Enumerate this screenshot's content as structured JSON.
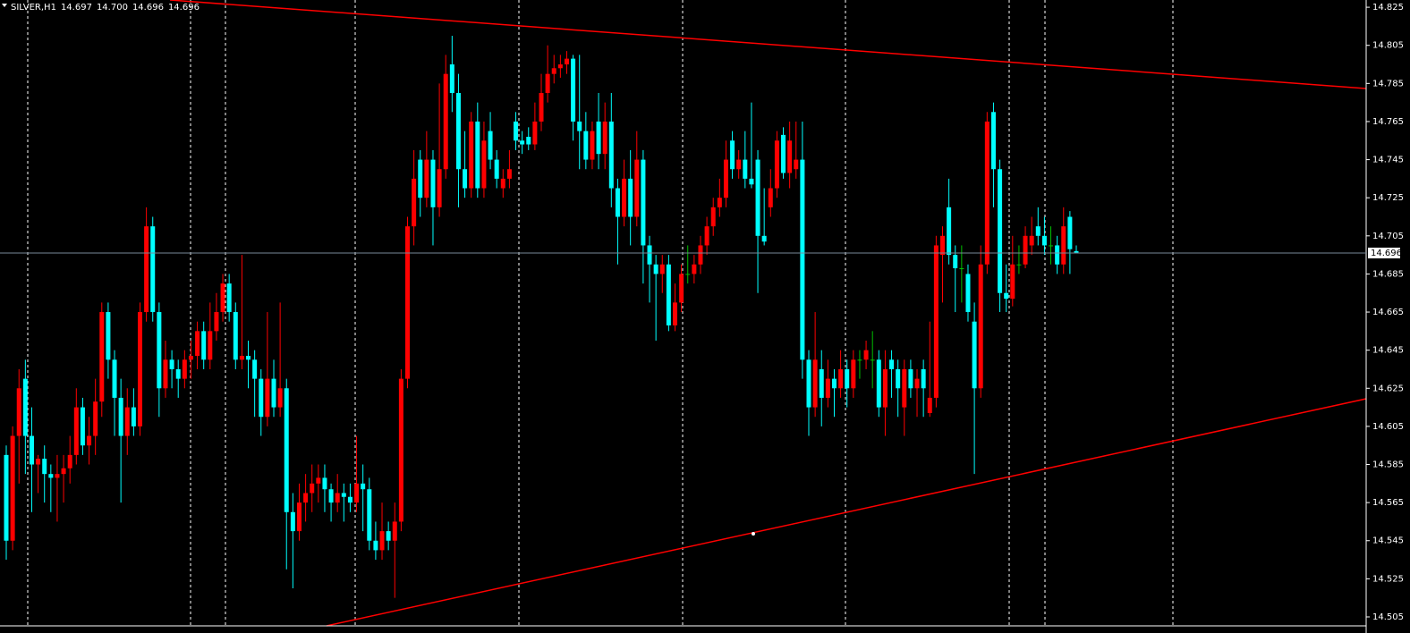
{
  "chart_data": {
    "type": "candlestick",
    "title": "SILVER,H1",
    "header": [
      14.697,
      {
        "value": 14.7,
        "label": "14.700"
      },
      14.696,
      14.696
    ],
    "current_price": 14.696,
    "ylim": [
      14.5003,
      14.8288
    ],
    "yticks": [
      14.825,
      14.805,
      14.785,
      14.765,
      14.745,
      14.725,
      14.705,
      14.685,
      14.665,
      14.645,
      14.625,
      14.605,
      14.585,
      14.565,
      14.545,
      14.525,
      14.505
    ],
    "colors": {
      "up": "#ff0000",
      "down": "#00ffff",
      "doji": "#00c000",
      "price_line": "#778899"
    },
    "ohlc": [
      [
        14.59,
        14.595,
        14.535,
        14.545
      ],
      [
        14.545,
        14.605,
        14.54,
        14.6
      ],
      [
        14.6,
        14.635,
        14.575,
        14.625
      ],
      [
        14.63,
        14.64,
        14.58,
        14.6
      ],
      [
        14.6,
        14.615,
        14.56,
        14.585
      ],
      [
        14.585,
        14.59,
        14.57,
        14.588
      ],
      [
        14.588,
        14.595,
        14.565,
        14.58
      ],
      [
        14.58,
        14.585,
        14.56,
        14.578
      ],
      [
        14.578,
        14.59,
        14.555,
        14.58
      ],
      [
        14.58,
        14.59,
        14.565,
        14.583
      ],
      [
        14.583,
        14.6,
        14.575,
        14.59
      ],
      [
        14.59,
        14.625,
        14.585,
        14.615
      ],
      [
        14.615,
        14.62,
        14.59,
        14.595
      ],
      [
        14.595,
        14.61,
        14.585,
        14.6
      ],
      [
        14.6,
        14.63,
        14.59,
        14.618
      ],
      [
        14.618,
        14.67,
        14.61,
        14.665
      ],
      [
        14.665,
        14.67,
        14.63,
        14.64
      ],
      [
        14.64,
        14.645,
        14.6,
        14.62
      ],
      [
        14.62,
        14.63,
        14.565,
        14.6
      ],
      [
        14.6,
        14.625,
        14.59,
        14.615
      ],
      [
        14.615,
        14.625,
        14.6,
        14.605
      ],
      [
        14.605,
        14.67,
        14.6,
        14.665
      ],
      [
        14.665,
        14.72,
        14.66,
        14.71
      ],
      [
        14.71,
        14.715,
        14.66,
        14.665
      ],
      [
        14.665,
        14.67,
        14.61,
        14.625
      ],
      [
        14.625,
        14.65,
        14.62,
        14.64
      ],
      [
        14.64,
        14.645,
        14.625,
        14.635
      ],
      [
        14.635,
        14.64,
        14.62,
        14.63
      ],
      [
        14.63,
        14.645,
        14.625,
        14.64
      ],
      [
        14.64,
        14.65,
        14.63,
        14.642
      ],
      [
        14.642,
        14.66,
        14.635,
        14.655
      ],
      [
        14.655,
        14.66,
        14.635,
        14.64
      ],
      [
        14.64,
        14.67,
        14.635,
        14.655
      ],
      [
        14.655,
        14.675,
        14.65,
        14.665
      ],
      [
        14.665,
        14.685,
        14.66,
        14.68
      ],
      [
        14.68,
        14.685,
        14.66,
        14.665
      ],
      [
        14.665,
        14.67,
        14.635,
        14.64
      ],
      [
        14.64,
        14.695,
        14.635,
        14.642
      ],
      [
        14.642,
        14.65,
        14.625,
        14.64
      ],
      [
        14.64,
        14.645,
        14.61,
        14.63
      ],
      [
        14.63,
        14.635,
        14.6,
        14.61
      ],
      [
        14.61,
        14.665,
        14.605,
        14.63
      ],
      [
        14.63,
        14.64,
        14.61,
        14.615
      ],
      [
        14.615,
        14.67,
        14.61,
        14.625
      ],
      [
        14.625,
        14.63,
        14.53,
        14.56
      ],
      [
        14.56,
        14.57,
        14.52,
        14.55
      ],
      [
        14.55,
        14.575,
        14.545,
        14.565
      ],
      [
        14.565,
        14.58,
        14.555,
        14.57
      ],
      [
        14.57,
        14.585,
        14.56,
        14.575
      ],
      [
        14.575,
        14.585,
        14.565,
        14.578
      ],
      [
        14.578,
        14.585,
        14.56,
        14.572
      ],
      [
        14.572,
        14.575,
        14.555,
        14.565
      ],
      [
        14.565,
        14.58,
        14.56,
        14.57
      ],
      [
        14.57,
        14.575,
        14.555,
        14.568
      ],
      [
        14.568,
        14.575,
        14.56,
        14.565
      ],
      [
        14.565,
        14.6,
        14.56,
        14.575
      ],
      [
        14.575,
        14.585,
        14.55,
        14.572
      ],
      [
        14.572,
        14.578,
        14.54,
        14.545
      ],
      [
        14.545,
        14.555,
        14.535,
        14.54
      ],
      [
        14.54,
        14.565,
        14.535,
        14.55
      ],
      [
        14.55,
        14.555,
        14.54,
        14.545
      ],
      [
        14.545,
        14.565,
        14.515,
        14.555
      ],
      [
        14.555,
        14.635,
        14.55,
        14.63
      ],
      [
        14.63,
        14.715,
        14.625,
        14.71
      ],
      [
        14.71,
        14.75,
        14.7,
        14.735
      ],
      [
        14.745,
        14.75,
        14.715,
        14.725
      ],
      [
        14.725,
        14.76,
        14.72,
        14.745
      ],
      [
        14.745,
        14.75,
        14.7,
        14.72
      ],
      [
        14.72,
        14.785,
        14.715,
        14.74
      ],
      [
        14.74,
        14.8,
        14.735,
        14.79
      ],
      [
        14.795,
        14.81,
        14.77,
        14.78
      ],
      [
        14.78,
        14.79,
        14.72,
        14.74
      ],
      [
        14.74,
        14.76,
        14.725,
        14.73
      ],
      [
        14.73,
        14.77,
        14.725,
        14.765
      ],
      [
        14.765,
        14.775,
        14.725,
        14.73
      ],
      [
        14.73,
        14.765,
        14.725,
        14.755
      ],
      [
        14.76,
        14.77,
        14.74,
        14.745
      ],
      [
        14.745,
        14.75,
        14.73,
        14.735
      ],
      [
        14.73,
        14.74,
        14.725,
        14.735
      ],
      [
        14.735,
        14.75,
        14.73,
        14.74
      ],
      [
        14.765,
        14.77,
        14.75,
        14.755
      ],
      [
        14.755,
        14.76,
        14.748,
        14.753
      ],
      [
        14.757,
        14.762,
        14.75,
        14.753
      ],
      [
        14.753,
        14.775,
        14.75,
        14.765
      ],
      [
        14.765,
        14.79,
        14.76,
        14.78
      ],
      [
        14.78,
        14.805,
        14.775,
        14.79
      ],
      [
        14.79,
        14.8,
        14.785,
        14.793
      ],
      [
        14.793,
        14.8,
        14.788,
        14.795
      ],
      [
        14.795,
        14.802,
        14.79,
        14.798
      ],
      [
        14.798,
        14.8,
        14.755,
        14.765
      ],
      [
        14.765,
        14.8,
        14.74,
        14.76
      ],
      [
        14.76,
        14.77,
        14.74,
        14.745
      ],
      [
        14.745,
        14.765,
        14.74,
        14.76
      ],
      [
        14.765,
        14.78,
        14.74,
        14.748
      ],
      [
        14.748,
        14.775,
        14.74,
        14.765
      ],
      [
        14.765,
        14.78,
        14.72,
        14.73
      ],
      [
        14.73,
        14.735,
        14.69,
        14.715
      ],
      [
        14.715,
        14.745,
        14.71,
        14.735
      ],
      [
        14.735,
        14.75,
        14.7,
        14.715
      ],
      [
        14.715,
        14.76,
        14.71,
        14.745
      ],
      [
        14.745,
        14.75,
        14.68,
        14.7
      ],
      [
        14.7,
        14.705,
        14.67,
        14.69
      ],
      [
        14.69,
        14.695,
        14.65,
        14.685
      ],
      [
        14.685,
        14.695,
        14.675,
        14.69
      ],
      [
        14.69,
        14.695,
        14.655,
        14.658
      ],
      [
        14.658,
        14.68,
        14.655,
        14.67
      ],
      [
        14.67,
        14.69,
        14.665,
        14.685
      ],
      [
        14.685,
        14.7,
        14.68,
        14.685
      ],
      [
        14.685,
        14.695,
        14.68,
        14.69
      ],
      [
        14.69,
        14.705,
        14.685,
        14.7
      ],
      [
        14.7,
        14.715,
        14.695,
        14.71
      ],
      [
        14.71,
        14.725,
        14.705,
        14.72
      ],
      [
        14.72,
        14.735,
        14.715,
        14.725
      ],
      [
        14.725,
        14.755,
        14.72,
        14.745
      ],
      [
        14.755,
        14.76,
        14.735,
        14.74
      ],
      [
        14.74,
        14.75,
        14.735,
        14.745
      ],
      [
        14.745,
        14.76,
        14.73,
        14.735
      ],
      [
        14.735,
        14.775,
        14.73,
        14.732
      ],
      [
        14.745,
        14.75,
        14.675,
        14.705
      ],
      [
        14.705,
        14.73,
        14.7,
        14.702
      ],
      [
        14.72,
        14.74,
        14.715,
        14.73
      ],
      [
        14.73,
        14.76,
        14.725,
        14.755
      ],
      [
        14.758,
        14.762,
        14.735,
        14.738
      ],
      [
        14.738,
        14.765,
        14.73,
        14.755
      ],
      [
        14.74,
        14.765,
        14.735,
        14.745
      ],
      [
        14.745,
        14.765,
        14.63,
        14.64
      ],
      [
        14.64,
        14.645,
        14.6,
        14.615
      ],
      [
        14.615,
        14.665,
        14.61,
        14.64
      ],
      [
        14.635,
        14.645,
        14.605,
        14.62
      ],
      [
        14.62,
        14.64,
        14.615,
        14.63
      ],
      [
        14.63,
        14.635,
        14.61,
        14.625
      ],
      [
        14.625,
        14.645,
        14.62,
        14.635
      ],
      [
        14.635,
        14.64,
        14.615,
        14.625
      ],
      [
        14.625,
        14.645,
        14.62,
        14.64
      ],
      [
        14.64,
        14.645,
        14.63,
        14.64
      ],
      [
        14.64,
        14.65,
        14.635,
        14.645
      ],
      [
        14.64,
        14.655,
        14.625,
        14.64
      ],
      [
        14.64,
        14.645,
        14.61,
        14.615
      ],
      [
        14.615,
        14.645,
        14.6,
        14.635
      ],
      [
        14.64,
        14.645,
        14.62,
        14.635
      ],
      [
        14.635,
        14.64,
        14.61,
        14.625
      ],
      [
        14.615,
        14.64,
        14.6,
        14.635
      ],
      [
        14.635,
        14.64,
        14.62,
        14.625
      ],
      [
        14.625,
        14.635,
        14.61,
        14.63
      ],
      [
        14.635,
        14.64,
        14.61,
        14.625
      ],
      [
        14.612,
        14.66,
        14.61,
        14.62
      ],
      [
        14.62,
        14.705,
        14.615,
        14.7
      ],
      [
        14.695,
        14.71,
        14.67,
        14.705
      ],
      [
        14.72,
        14.735,
        14.69,
        14.695
      ],
      [
        14.695,
        14.7,
        14.665,
        14.688
      ],
      [
        14.688,
        14.7,
        14.67,
        14.688
      ],
      [
        14.685,
        14.69,
        14.66,
        14.665
      ],
      [
        14.66,
        14.67,
        14.58,
        14.625
      ],
      [
        14.625,
        14.7,
        14.62,
        14.69
      ],
      [
        14.69,
        14.77,
        14.685,
        14.765
      ],
      [
        14.77,
        14.775,
        14.72,
        14.74
      ],
      [
        14.74,
        14.745,
        14.665,
        14.675
      ],
      [
        14.675,
        14.69,
        14.665,
        14.672
      ],
      [
        14.672,
        14.705,
        14.668,
        14.69
      ],
      [
        14.69,
        14.7,
        14.685,
        14.69
      ],
      [
        14.69,
        14.71,
        14.688,
        14.705
      ],
      [
        14.7,
        14.715,
        14.695,
        14.705
      ],
      [
        14.71,
        14.72,
        14.7,
        14.705
      ],
      [
        14.705,
        14.715,
        14.695,
        14.7
      ],
      [
        14.7,
        14.71,
        14.69,
        14.7
      ],
      [
        14.7,
        14.705,
        14.685,
        14.69
      ],
      [
        14.69,
        14.72,
        14.685,
        14.71
      ],
      [
        14.715,
        14.718,
        14.685,
        14.698
      ],
      [
        14.697,
        14.7,
        14.696,
        14.696
      ]
    ]
  }
}
